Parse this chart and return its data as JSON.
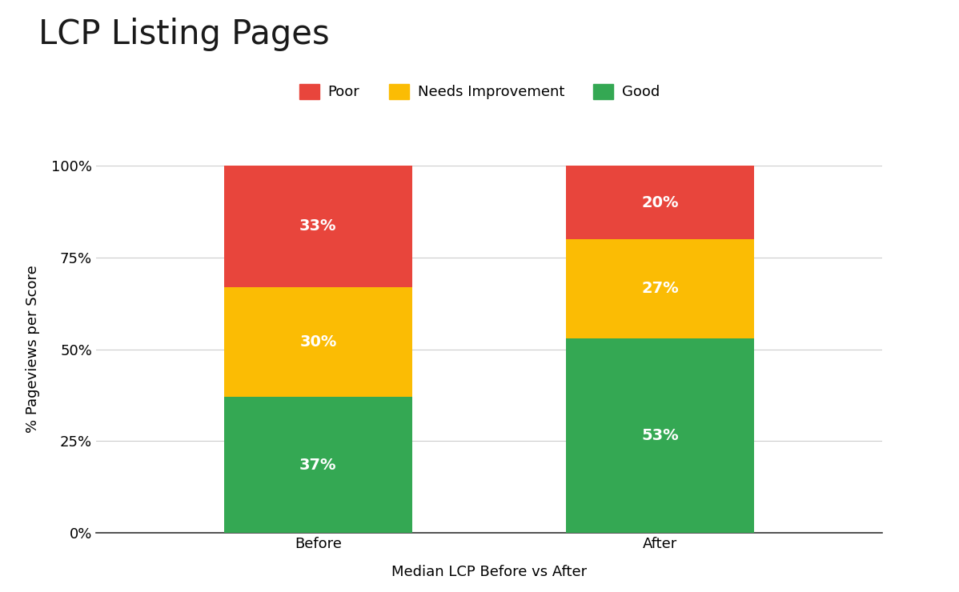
{
  "title": "LCP Listing Pages",
  "xlabel": "Median LCP Before vs After",
  "ylabel": "% Pageviews per Score",
  "categories": [
    "Before",
    "After"
  ],
  "good_values": [
    37,
    53
  ],
  "needs_improvement_values": [
    30,
    27
  ],
  "poor_values": [
    33,
    20
  ],
  "color_good": "#34a853",
  "color_needs_improvement": "#fbbc04",
  "color_poor": "#e8453c",
  "label_good": "Good",
  "label_needs_improvement": "Needs Improvement",
  "label_poor": "Poor",
  "yticks": [
    0,
    25,
    50,
    75,
    100
  ],
  "ytick_labels": [
    "0%",
    "25%",
    "50%",
    "75%",
    "100%"
  ],
  "background_color": "#ffffff",
  "title_fontsize": 30,
  "axis_label_fontsize": 13,
  "tick_fontsize": 13,
  "legend_fontsize": 13,
  "bar_label_fontsize": 14,
  "bar_width": 0.55
}
